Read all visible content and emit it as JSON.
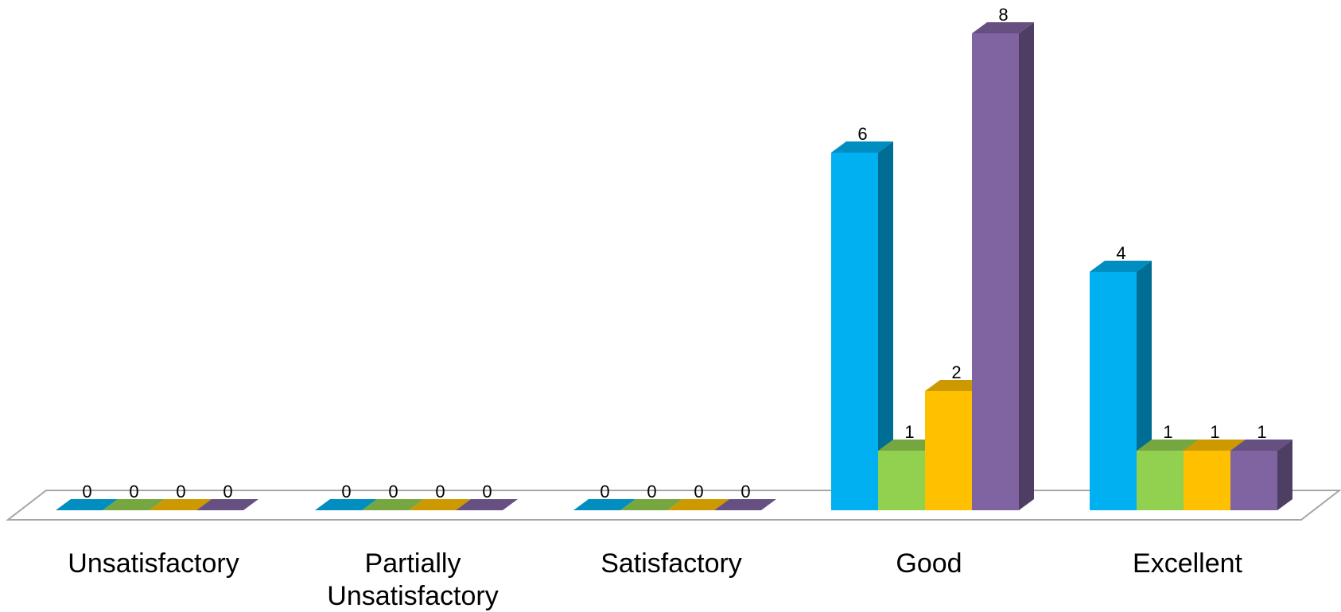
{
  "chart_data": {
    "type": "bar",
    "categories": [
      "Unsatisfactory",
      "Partially Unsatisfactory",
      "Satisfactory",
      "Good",
      "Excellent"
    ],
    "series": [
      {
        "color": "#00B0F0",
        "values": [
          0,
          0,
          0,
          6,
          4
        ]
      },
      {
        "color": "#92D050",
        "values": [
          0,
          0,
          0,
          1,
          1
        ]
      },
      {
        "color": "#FFC000",
        "values": [
          0,
          0,
          0,
          2,
          1
        ]
      },
      {
        "color": "#8064A2",
        "values": [
          0,
          0,
          0,
          8,
          1
        ]
      }
    ],
    "title": "",
    "xlabel": "",
    "ylabel": "",
    "ylim": [
      0,
      8
    ],
    "grid": false,
    "legend": "none",
    "style": "3d-clustered-column"
  }
}
